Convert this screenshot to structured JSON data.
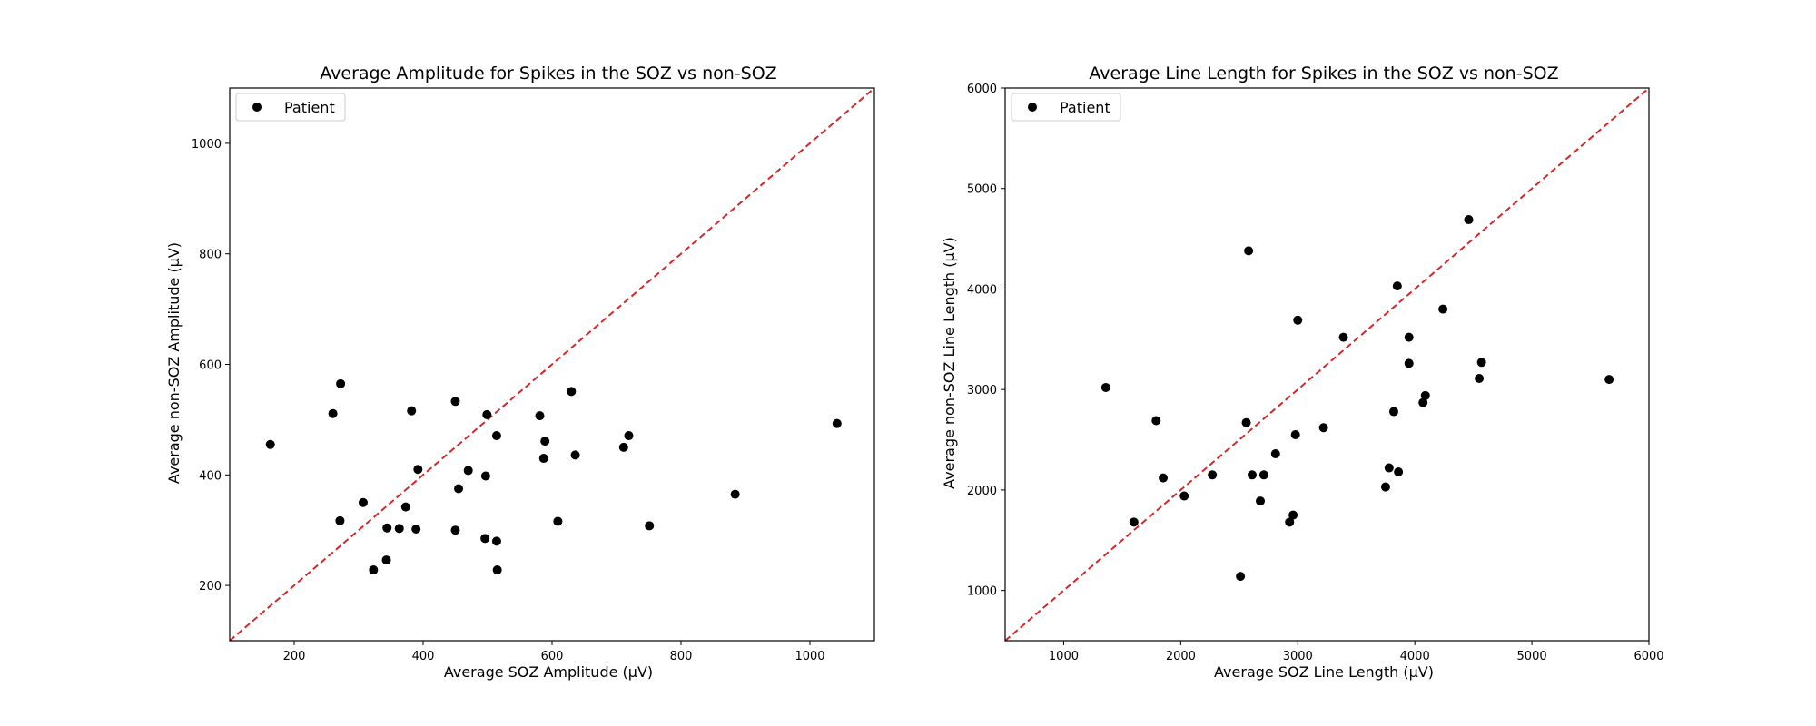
{
  "figure": {
    "marker_color": "#000000",
    "diagonal_color": "#d62728"
  },
  "charts": [
    {
      "title": "Average Amplitude for Spikes in the SOZ vs non-SOZ",
      "xlabel": "Average SOZ Amplitude (μV)",
      "ylabel": "Average non-SOZ Amplitude (μV)",
      "legend_label": "Patient"
    },
    {
      "title": "Average Line Length for Spikes in the SOZ vs non-SOZ",
      "xlabel": "Average SOZ Line Length (μV)",
      "ylabel": "Average non-SOZ Line Length (μV)",
      "legend_label": "Patient"
    }
  ],
  "chart_data": [
    {
      "type": "scatter",
      "title": "Average Amplitude for Spikes in the SOZ vs non-SOZ",
      "xlabel": "Average SOZ Amplitude (μV)",
      "ylabel": "Average non-SOZ Amplitude (μV)",
      "xlim": [
        100,
        1100
      ],
      "ylim": [
        100,
        1100
      ],
      "xticks": [
        200,
        400,
        600,
        800,
        1000
      ],
      "yticks": [
        200,
        400,
        600,
        800,
        1000
      ],
      "grid": false,
      "legend_placement": "upper left",
      "reference_line": "y = x (red dashed)",
      "series": [
        {
          "name": "Patient",
          "points": [
            [
              163,
              455
            ],
            [
              260,
              511
            ],
            [
              272,
              565
            ],
            [
              271,
              317
            ],
            [
              307,
              350
            ],
            [
              323,
              228
            ],
            [
              343,
              246
            ],
            [
              344,
              304
            ],
            [
              363,
              303
            ],
            [
              373,
              342
            ],
            [
              382,
              516
            ],
            [
              389,
              302
            ],
            [
              392,
              410
            ],
            [
              450,
              533
            ],
            [
              450,
              300
            ],
            [
              455,
              375
            ],
            [
              470,
              408
            ],
            [
              496,
              285
            ],
            [
              497,
              398
            ],
            [
              499,
              509
            ],
            [
              514,
              471
            ],
            [
              514,
              280
            ],
            [
              515,
              228
            ],
            [
              581,
              507
            ],
            [
              587,
              430
            ],
            [
              589,
              461
            ],
            [
              609,
              316
            ],
            [
              630,
              551
            ],
            [
              636,
              436
            ],
            [
              711,
              450
            ],
            [
              719,
              471
            ],
            [
              751,
              308
            ],
            [
              884,
              365
            ],
            [
              1042,
              493
            ]
          ]
        }
      ]
    },
    {
      "type": "scatter",
      "title": "Average Line Length for Spikes in the SOZ vs non-SOZ",
      "xlabel": "Average SOZ Line Length (μV)",
      "ylabel": "Average non-SOZ Line Length (μV)",
      "xlim": [
        500,
        6000
      ],
      "ylim": [
        500,
        6000
      ],
      "xticks": [
        1000,
        2000,
        3000,
        4000,
        5000,
        6000
      ],
      "yticks": [
        1000,
        2000,
        3000,
        4000,
        5000,
        6000
      ],
      "grid": false,
      "legend_placement": "upper left",
      "reference_line": "y = x (red dashed)",
      "series": [
        {
          "name": "Patient",
          "points": [
            [
              1360,
              3020
            ],
            [
              1600,
              1680
            ],
            [
              1790,
              2690
            ],
            [
              1850,
              2120
            ],
            [
              2030,
              1940
            ],
            [
              2270,
              2150
            ],
            [
              2510,
              1140
            ],
            [
              2560,
              2670
            ],
            [
              2580,
              4380
            ],
            [
              2610,
              2150
            ],
            [
              2680,
              1890
            ],
            [
              2710,
              2150
            ],
            [
              2810,
              2360
            ],
            [
              2930,
              1680
            ],
            [
              2960,
              1750
            ],
            [
              2980,
              2550
            ],
            [
              3000,
              3690
            ],
            [
              3220,
              2620
            ],
            [
              3390,
              3520
            ],
            [
              3750,
              2030
            ],
            [
              3780,
              2220
            ],
            [
              3820,
              2780
            ],
            [
              3850,
              4030
            ],
            [
              3860,
              2180
            ],
            [
              3950,
              3520
            ],
            [
              3950,
              3260
            ],
            [
              4070,
              2870
            ],
            [
              4090,
              2940
            ],
            [
              4240,
              3800
            ],
            [
              4460,
              4690
            ],
            [
              4550,
              3110
            ],
            [
              4570,
              3270
            ],
            [
              5660,
              3100
            ]
          ]
        }
      ]
    }
  ]
}
